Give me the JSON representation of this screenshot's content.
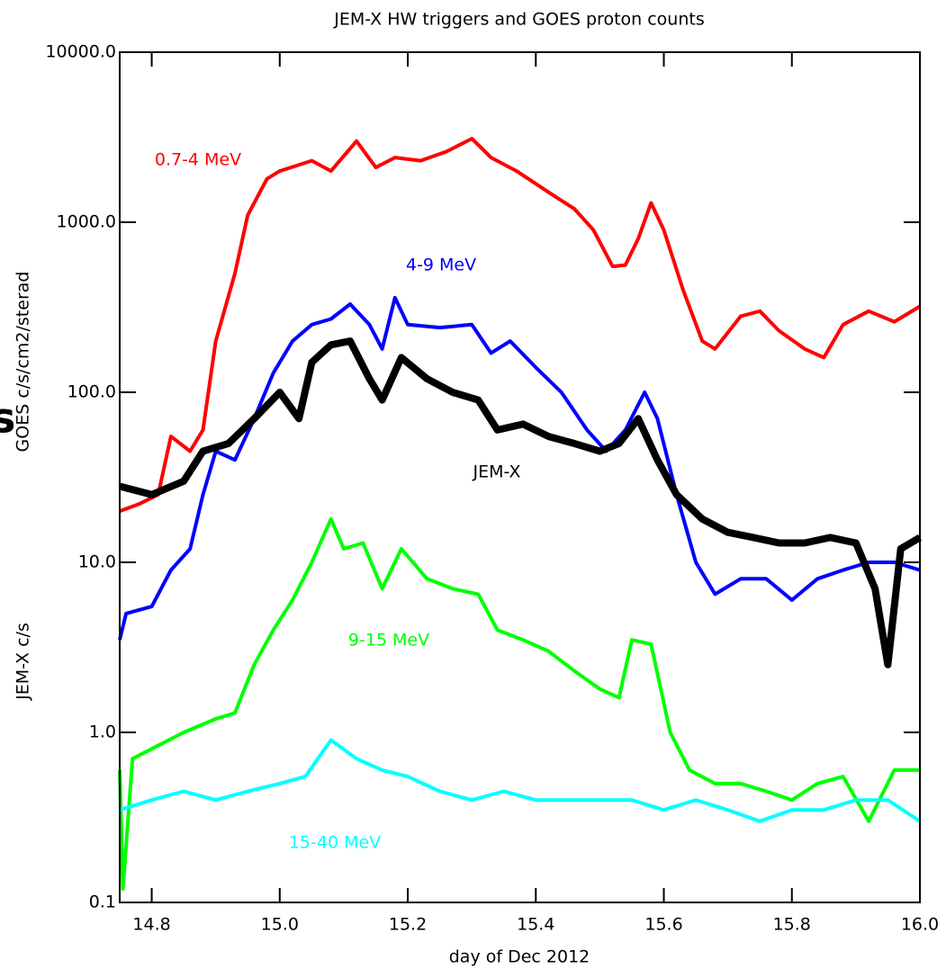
{
  "chart_data": {
    "type": "line",
    "title": "JEM-X HW triggers and GOES proton counts",
    "xlabel": "day of Dec 2012",
    "ylabel": [
      "GOES c/s/cm2/sterad",
      "JEM-X c/s"
    ],
    "edge_text": "s",
    "log_y": true,
    "xlim": [
      14.75,
      16.0
    ],
    "ylim": [
      0.1,
      10000
    ],
    "xticks": [
      14.8,
      {
        "value": 15.0,
        "label": "15.0"
      },
      15.2,
      15.4,
      15.6,
      15.8,
      {
        "value": 16.0,
        "label": "16.0"
      }
    ],
    "yticks": [
      0.1,
      {
        "value": 1,
        "label": "1.0"
      },
      {
        "value": 10,
        "label": "10.0"
      },
      {
        "value": 100,
        "label": "100.0"
      },
      {
        "value": 1000,
        "label": "1000.0"
      },
      {
        "value": 10000,
        "label": "10000.0"
      }
    ],
    "series": [
      {
        "name": "0.7-4 MeV",
        "color": "#ff0000",
        "x": [
          14.75,
          14.78,
          14.81,
          14.83,
          14.86,
          14.88,
          14.9,
          14.93,
          14.95,
          14.98,
          15.0,
          15.05,
          15.08,
          15.12,
          15.15,
          15.18,
          15.22,
          15.26,
          15.3,
          15.33,
          15.37,
          15.42,
          15.46,
          15.49,
          15.52,
          15.54,
          15.56,
          15.58,
          15.6,
          15.63,
          15.66,
          15.68,
          15.72,
          15.75,
          15.78,
          15.82,
          15.85,
          15.88,
          15.92,
          15.96,
          16.0
        ],
        "values": [
          20,
          22,
          25,
          55,
          45,
          60,
          200,
          500,
          1100,
          1800,
          2000,
          2300,
          2000,
          3000,
          2100,
          2400,
          2300,
          2600,
          3100,
          2400,
          2000,
          1500,
          1200,
          900,
          550,
          560,
          800,
          1300,
          900,
          400,
          200,
          180,
          280,
          300,
          230,
          180,
          160,
          250,
          300,
          260,
          320
        ]
      },
      {
        "name": "4-9 MeV",
        "color": "#0000ff",
        "x": [
          14.75,
          14.76,
          14.8,
          14.83,
          14.86,
          14.88,
          14.9,
          14.93,
          14.96,
          14.99,
          15.02,
          15.05,
          15.08,
          15.11,
          15.14,
          15.16,
          15.18,
          15.2,
          15.25,
          15.3,
          15.33,
          15.36,
          15.4,
          15.44,
          15.48,
          15.51,
          15.54,
          15.57,
          15.59,
          15.62,
          15.65,
          15.68,
          15.72,
          15.76,
          15.8,
          15.84,
          15.88,
          15.92,
          15.96,
          16.0
        ],
        "values": [
          3.5,
          5,
          5.5,
          9,
          12,
          25,
          45,
          40,
          70,
          130,
          200,
          250,
          270,
          330,
          250,
          180,
          360,
          250,
          240,
          250,
          170,
          200,
          140,
          100,
          60,
          45,
          60,
          100,
          70,
          25,
          10,
          6.5,
          8,
          8,
          6,
          8,
          9,
          10,
          10,
          9
        ]
      },
      {
        "name": "JEM-X",
        "color": "#000000",
        "x": [
          14.75,
          14.8,
          14.85,
          14.88,
          14.92,
          14.96,
          15.0,
          15.03,
          15.05,
          15.08,
          15.11,
          15.14,
          15.16,
          15.19,
          15.23,
          15.27,
          15.31,
          15.34,
          15.38,
          15.42,
          15.46,
          15.5,
          15.53,
          15.56,
          15.59,
          15.62,
          15.66,
          15.7,
          15.74,
          15.78,
          15.82,
          15.86,
          15.9,
          15.93,
          15.95,
          15.97,
          16.0
        ],
        "values": [
          28,
          25,
          30,
          45,
          50,
          70,
          100,
          70,
          150,
          190,
          200,
          120,
          90,
          160,
          120,
          100,
          90,
          60,
          65,
          55,
          50,
          45,
          50,
          70,
          40,
          25,
          18,
          15,
          14,
          13,
          13,
          14,
          13,
          7,
          2.5,
          12,
          14
        ]
      },
      {
        "name": "9-15 MeV",
        "color": "#00ff00",
        "x": [
          14.75,
          14.755,
          14.77,
          14.8,
          14.85,
          14.9,
          14.93,
          14.96,
          14.99,
          15.02,
          15.05,
          15.08,
          15.1,
          15.13,
          15.16,
          15.19,
          15.23,
          15.27,
          15.31,
          15.34,
          15.38,
          15.42,
          15.46,
          15.5,
          15.53,
          15.55,
          15.58,
          15.61,
          15.64,
          15.68,
          15.72,
          15.76,
          15.8,
          15.84,
          15.88,
          15.92,
          15.96,
          16.0
        ],
        "values": [
          0.6,
          0.12,
          0.7,
          0.8,
          1.0,
          1.2,
          1.3,
          2.5,
          4,
          6,
          10,
          18,
          12,
          13,
          7,
          12,
          8,
          7,
          6.5,
          4,
          3.5,
          3,
          2.3,
          1.8,
          1.6,
          3.5,
          3.3,
          1,
          0.6,
          0.5,
          0.5,
          0.45,
          0.4,
          0.5,
          0.55,
          0.3,
          0.6,
          0.6
        ]
      },
      {
        "name": "15-40 MeV",
        "color": "#00ffff",
        "x": [
          14.75,
          14.8,
          14.85,
          14.9,
          14.95,
          15.0,
          15.04,
          15.08,
          15.12,
          15.16,
          15.2,
          15.25,
          15.3,
          15.35,
          15.4,
          15.45,
          15.5,
          15.55,
          15.6,
          15.65,
          15.7,
          15.75,
          15.8,
          15.85,
          15.9,
          15.95,
          16.0
        ],
        "values": [
          0.35,
          0.4,
          0.45,
          0.4,
          0.45,
          0.5,
          0.55,
          0.9,
          0.7,
          0.6,
          0.55,
          0.45,
          0.4,
          0.45,
          0.4,
          0.4,
          0.4,
          0.4,
          0.35,
          0.4,
          0.35,
          0.3,
          0.35,
          0.35,
          0.4,
          0.4,
          0.3
        ]
      }
    ]
  }
}
